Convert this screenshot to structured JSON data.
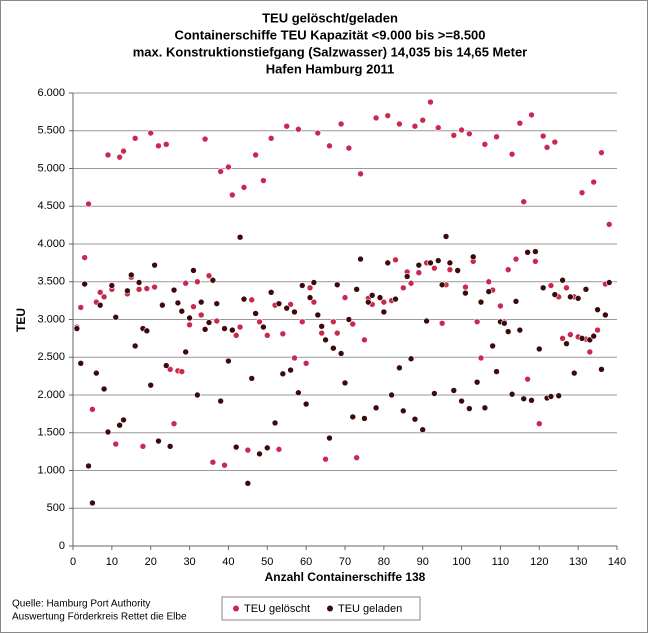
{
  "chart_data": {
    "type": "scatter",
    "title": [
      "TEU gelöscht/geladen",
      "Containerschiffe TEU Kapazität <9.000 bis >=8.500",
      "max. Konstruktionstiefgang (Salzwasser) 14,035 bis 14,65 Meter",
      "Hafen Hamburg 2011"
    ],
    "x_label": "Anzahl Containerschiffe 138",
    "y_label": "TEU",
    "source": [
      "Quelle: Hamburg Port Authority",
      "Auswertung Förderkreis Rettet die Elbe"
    ],
    "xlim": [
      0,
      140
    ],
    "xticks": [
      0,
      10,
      20,
      30,
      40,
      50,
      60,
      70,
      80,
      90,
      100,
      110,
      120,
      130,
      140
    ],
    "ylim": [
      0,
      6000
    ],
    "yticks": [
      0,
      {
        "value": 500,
        "label": "500"
      },
      {
        "value": 1000,
        "label": "1.000"
      },
      {
        "value": 1500,
        "label": "1.500"
      },
      {
        "value": 2000,
        "label": "2.000"
      },
      {
        "value": 2500,
        "label": "2.500"
      },
      {
        "value": 3000,
        "label": "3.000"
      },
      {
        "value": 3500,
        "label": "3.500"
      },
      {
        "value": 4000,
        "label": "4.000"
      },
      {
        "value": 4500,
        "label": "4.500"
      },
      {
        "value": 5000,
        "label": "5.000"
      },
      {
        "value": 5500,
        "label": "5.500"
      },
      {
        "value": 6000,
        "label": "6.000"
      }
    ],
    "grid": true,
    "legend": "bottom",
    "x": [
      1,
      2,
      3,
      4,
      5,
      6,
      7,
      8,
      9,
      10,
      11,
      12,
      13,
      14,
      15,
      16,
      17,
      18,
      19,
      20,
      21,
      22,
      23,
      24,
      25,
      26,
      27,
      28,
      29,
      30,
      31,
      32,
      33,
      34,
      35,
      36,
      37,
      38,
      39,
      40,
      41,
      42,
      43,
      44,
      45,
      46,
      47,
      48,
      49,
      50,
      51,
      52,
      53,
      54,
      55,
      56,
      57,
      58,
      59,
      60,
      61,
      62,
      63,
      64,
      65,
      66,
      67,
      68,
      69,
      70,
      71,
      72,
      73,
      74,
      75,
      76,
      77,
      78,
      79,
      80,
      81,
      82,
      83,
      84,
      85,
      86,
      87,
      88,
      89,
      90,
      91,
      92,
      93,
      94,
      95,
      96,
      97,
      98,
      99,
      100,
      101,
      102,
      103,
      104,
      105,
      106,
      107,
      108,
      109,
      110,
      111,
      112,
      113,
      114,
      115,
      116,
      117,
      118,
      119,
      120,
      121,
      122,
      123,
      124,
      125,
      126,
      127,
      128,
      129,
      130,
      131,
      132,
      133,
      134,
      135,
      136,
      137,
      138
    ],
    "series": [
      {
        "name": "TEU gelöscht",
        "color": "#c8294d",
        "values": [
          2900,
          3160,
          3820,
          4530,
          1810,
          3230,
          3360,
          3300,
          5180,
          3400,
          1350,
          5150,
          5230,
          3340,
          3560,
          5400,
          3400,
          1320,
          3410,
          5470,
          3430,
          5300,
          3200,
          5320,
          2340,
          1620,
          2320,
          2310,
          3480,
          2930,
          3170,
          3500,
          3060,
          5390,
          3580,
          1110,
          2980,
          4960,
          1070,
          5020,
          4650,
          2790,
          2900,
          4750,
          1270,
          3260,
          5180,
          2970,
          4840,
          2790,
          5400,
          3190,
          1280,
          2810,
          5560,
          3200,
          2490,
          5520,
          2970,
          2420,
          3420,
          3230,
          5470,
          2820,
          1150,
          5300,
          2970,
          2820,
          5590,
          3290,
          5270,
          2940,
          1170,
          4930,
          2730,
          3280,
          3200,
          5670,
          3280,
          3230,
          5700,
          3250,
          3790,
          5590,
          3420,
          3630,
          3480,
          5560,
          3620,
          5640,
          3750,
          5880,
          3680,
          5540,
          2950,
          3460,
          3660,
          5440,
          3640,
          5510,
          3430,
          5460,
          3770,
          2970,
          2490,
          5320,
          3500,
          3390,
          5420,
          3180,
          2970,
          3660,
          5190,
          3800,
          5600,
          4560,
          2210,
          5710,
          3770,
          1620,
          5430,
          5280,
          3450,
          5350,
          3300,
          2750,
          3420,
          2800,
          3300,
          2770,
          4680,
          2740,
          2570,
          4820,
          2860,
          5210,
          3470,
          4260
        ]
      },
      {
        "name": "TEU geladen",
        "color": "#3c0a0a",
        "values": [
          2880,
          2420,
          3470,
          1060,
          570,
          2290,
          3190,
          2080,
          1510,
          3450,
          3030,
          1600,
          1670,
          3380,
          3590,
          2650,
          3490,
          2880,
          2850,
          2130,
          3720,
          1390,
          3190,
          2390,
          1320,
          3390,
          3220,
          3110,
          2570,
          3020,
          3650,
          2000,
          3230,
          2870,
          2960,
          3520,
          3210,
          1920,
          2880,
          2450,
          2860,
          1310,
          4090,
          3270,
          830,
          2220,
          3080,
          1220,
          2900,
          1300,
          3360,
          1630,
          3210,
          2280,
          3150,
          2330,
          3100,
          2030,
          3450,
          1880,
          3290,
          3490,
          3060,
          2910,
          2730,
          1430,
          2620,
          3460,
          2550,
          2160,
          3000,
          1710,
          3400,
          3800,
          1690,
          3230,
          3320,
          1830,
          3290,
          3100,
          3750,
          2000,
          3270,
          2360,
          1790,
          3570,
          2480,
          1680,
          3720,
          1540,
          2980,
          3750,
          2020,
          3780,
          3460,
          4100,
          3750,
          2060,
          3650,
          1920,
          3350,
          1820,
          3830,
          2170,
          3230,
          1830,
          3370,
          2650,
          2310,
          2970,
          2950,
          2840,
          2010,
          3240,
          2860,
          1950,
          3890,
          1930,
          3900,
          2610,
          3420,
          1960,
          1980,
          3330,
          1990,
          3520,
          2680,
          3300,
          2290,
          3280,
          2750,
          3400,
          2730,
          2780,
          3130,
          2340,
          3060,
          3490
        ]
      }
    ]
  }
}
